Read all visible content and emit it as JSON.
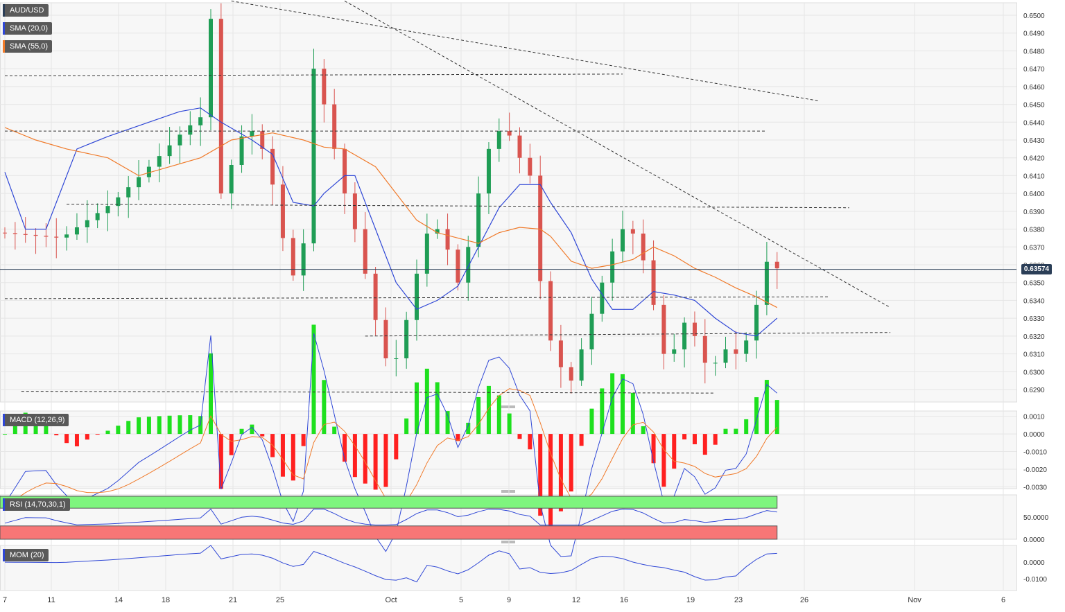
{
  "instrument": "AUD/USD",
  "legend": {
    "symbol": {
      "label": "AUD/USD",
      "color": "#2b3e57"
    },
    "sma20": {
      "label": "SMA (20,0)",
      "color": "#2f47d6"
    },
    "sma55": {
      "label": "SMA (55,0)",
      "color": "#f07a2a"
    }
  },
  "last_price": "0.63574",
  "indicators": {
    "macd": {
      "label": "MACD (12,26,9)",
      "color": "#2f47d6"
    },
    "rsi": {
      "label": "RSI (14,70,30,1)",
      "color": "#2f47d6"
    },
    "mom": {
      "label": "MOM (20)",
      "color": "#2f47d6"
    }
  },
  "colors": {
    "up": "#1f9d55",
    "down": "#d9544f",
    "grid": "#e6e6e6",
    "text": "#333333",
    "hist_up": "#1ee01e",
    "hist_down": "#ff2020",
    "rsi_over": "#7ef57e",
    "rsi_under": "#f77676"
  },
  "chart_data": [
    {
      "type": "candlestick",
      "title": "AUD/USD",
      "x_ticks": [
        "7",
        "11",
        "14",
        "18",
        "21",
        "25",
        "Oct",
        "5",
        "9",
        "12",
        "16",
        "19",
        "23",
        "26",
        "Nov",
        "6"
      ],
      "ylim": [
        0.6283,
        0.6507
      ],
      "y_ticks": [
        "0.6500",
        "0.6490",
        "0.6480",
        "0.6470",
        "0.6460",
        "0.6450",
        "0.6440",
        "0.6430",
        "0.6420",
        "0.6410",
        "0.6400",
        "0.6390",
        "0.6380",
        "0.6370",
        "0.6360",
        "0.6350",
        "0.6340",
        "0.6330",
        "0.6320",
        "0.6310",
        "0.6300",
        "0.6290"
      ],
      "close_path": [
        [
          0,
          0.6378
        ],
        [
          6,
          0.6375
        ],
        [
          11,
          0.6395
        ],
        [
          14,
          0.6412
        ],
        [
          18,
          0.6436
        ],
        [
          20,
          0.6445
        ],
        [
          20.5,
          0.6498
        ],
        [
          21,
          0.646
        ],
        [
          21.5,
          0.64
        ],
        [
          24,
          0.644
        ],
        [
          26,
          0.642
        ],
        [
          28,
          0.636
        ],
        [
          29,
          0.6348
        ],
        [
          30,
          0.6396
        ],
        [
          30.5,
          0.647
        ],
        [
          31,
          0.65
        ],
        [
          31.5,
          0.645
        ],
        [
          32,
          0.644
        ],
        [
          33,
          0.641
        ],
        [
          34,
          0.639
        ],
        [
          35,
          0.637
        ],
        [
          36,
          0.634
        ],
        [
          37,
          0.6318
        ],
        [
          38,
          0.6297
        ],
        [
          39,
          0.6318
        ],
        [
          40,
          0.634
        ],
        [
          41,
          0.637
        ],
        [
          42,
          0.6385
        ],
        [
          43,
          0.6375
        ],
        [
          44,
          0.6362
        ],
        [
          44.5,
          0.635
        ],
        [
          46,
          0.638
        ],
        [
          47,
          0.642
        ],
        [
          48,
          0.643
        ],
        [
          49,
          0.644
        ],
        [
          50,
          0.6425
        ],
        [
          51,
          0.6415
        ],
        [
          52,
          0.6405
        ],
        [
          52.6,
          0.634
        ],
        [
          53,
          0.632
        ],
        [
          54,
          0.6315
        ],
        [
          55,
          0.629
        ],
        [
          56,
          0.63
        ],
        [
          57,
          0.6325
        ],
        [
          58,
          0.634
        ],
        [
          59,
          0.636
        ],
        [
          60,
          0.6375
        ],
        [
          61,
          0.6385
        ],
        [
          62,
          0.637
        ],
        [
          63,
          0.6355
        ],
        [
          64,
          0.632
        ],
        [
          65,
          0.63
        ],
        [
          66,
          0.6325
        ],
        [
          67,
          0.633
        ],
        [
          68,
          0.631
        ],
        [
          69,
          0.63
        ],
        [
          70,
          0.631
        ],
        [
          71,
          0.6315
        ],
        [
          72,
          0.6305
        ],
        [
          73,
          0.633
        ],
        [
          74,
          0.6345
        ],
        [
          74.6,
          0.6365
        ],
        [
          75,
          0.6358
        ]
      ],
      "sma20_path": [
        [
          0,
          0.6412
        ],
        [
          2,
          0.638
        ],
        [
          4,
          0.638
        ],
        [
          7,
          0.6425
        ],
        [
          10,
          0.6432
        ],
        [
          13,
          0.6438
        ],
        [
          17,
          0.6446
        ],
        [
          19,
          0.6448
        ],
        [
          21,
          0.644
        ],
        [
          24,
          0.643
        ],
        [
          26,
          0.6422
        ],
        [
          28,
          0.6395
        ],
        [
          30,
          0.6393
        ],
        [
          31,
          0.64
        ],
        [
          33,
          0.641
        ],
        [
          34,
          0.641
        ],
        [
          36,
          0.638
        ],
        [
          38,
          0.635
        ],
        [
          40,
          0.6335
        ],
        [
          42,
          0.634
        ],
        [
          44,
          0.6348
        ],
        [
          46,
          0.637
        ],
        [
          48,
          0.6392
        ],
        [
          50,
          0.6405
        ],
        [
          52,
          0.6405
        ],
        [
          53,
          0.6395
        ],
        [
          55,
          0.6378
        ],
        [
          57,
          0.6352
        ],
        [
          59,
          0.6335
        ],
        [
          61,
          0.6335
        ],
        [
          63,
          0.6345
        ],
        [
          65,
          0.6343
        ],
        [
          67,
          0.634
        ],
        [
          69,
          0.633
        ],
        [
          71,
          0.6322
        ],
        [
          73,
          0.632
        ],
        [
          75,
          0.633
        ]
      ],
      "sma55_path": [
        [
          0,
          0.6437
        ],
        [
          3,
          0.643
        ],
        [
          6,
          0.6425
        ],
        [
          10,
          0.642
        ],
        [
          13,
          0.641
        ],
        [
          16,
          0.6415
        ],
        [
          19,
          0.642
        ],
        [
          22,
          0.643
        ],
        [
          26,
          0.6434
        ],
        [
          29,
          0.643
        ],
        [
          31,
          0.6426
        ],
        [
          33,
          0.6425
        ],
        [
          36,
          0.6415
        ],
        [
          38,
          0.64
        ],
        [
          40,
          0.6385
        ],
        [
          42,
          0.6378
        ],
        [
          44,
          0.6375
        ],
        [
          46,
          0.6372
        ],
        [
          48,
          0.6378
        ],
        [
          50,
          0.6381
        ],
        [
          52,
          0.638
        ],
        [
          53,
          0.6376
        ],
        [
          55,
          0.6362
        ],
        [
          57,
          0.6358
        ],
        [
          59,
          0.636
        ],
        [
          61,
          0.6363
        ],
        [
          63,
          0.637
        ],
        [
          65,
          0.6365
        ],
        [
          67,
          0.6358
        ],
        [
          69,
          0.6353
        ],
        [
          71,
          0.6347
        ],
        [
          73,
          0.6342
        ],
        [
          75,
          0.6336
        ]
      ],
      "trendlines": [
        {
          "from": [
            22,
            0.6508
          ],
          "to": [
            79,
            0.6452
          ]
        },
        {
          "from": [
            33,
            0.6508
          ],
          "to": [
            86,
            0.6336
          ]
        },
        {
          "from": [
            0,
            0.6466
          ],
          "to": [
            60,
            0.6467
          ]
        },
        {
          "from": [
            0,
            0.6435
          ],
          "to": [
            74,
            0.6435
          ]
        },
        {
          "from": [
            6,
            0.6394
          ],
          "to": [
            82,
            0.6392
          ]
        },
        {
          "from": [
            0,
            0.6341
          ],
          "to": [
            80,
            0.6342
          ]
        },
        {
          "from": [
            35,
            0.632
          ],
          "to": [
            86,
            0.6322
          ]
        },
        {
          "from": [
            1.6,
            0.6289
          ],
          "to": [
            69,
            0.6288
          ]
        }
      ]
    },
    {
      "type": "bar+line",
      "title": "MACD (12,26,9)",
      "ylim": [
        -0.0031,
        0.0013
      ],
      "y_ticks": [
        "0.0010",
        "0.0000",
        "-0.0010",
        "-0.0020",
        "-0.0030"
      ]
    },
    {
      "type": "line",
      "title": "RSI (14,70,30,1)",
      "ylim": [
        0,
        100
      ],
      "y_ticks": [
        "50.0000",
        "0.0000"
      ],
      "overbought": 70,
      "oversold": 30
    },
    {
      "type": "line",
      "title": "MOM (20)",
      "y_ticks": [
        "0.0000",
        "-0.0100"
      ]
    }
  ]
}
